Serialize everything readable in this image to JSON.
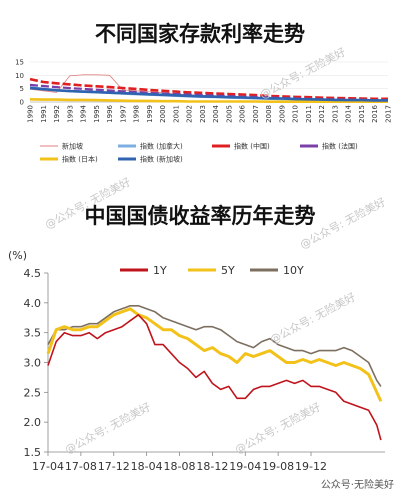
{
  "titles": {
    "top": "不同国家存款利率走势",
    "bottom": "中国国债收益率历年走势"
  },
  "watermarks": [
    "@公众号: 无险美好",
    "@公众号: 无险美好",
    "@公众号: 无险美好",
    "@公众号: 无险美好",
    "@公众号: 无险美好",
    "@公众号: 无险美好"
  ],
  "footer_watermark": "公众号·无险美好",
  "chart_data": [
    {
      "type": "line",
      "title": "不同国家存款利率走势",
      "x": [
        "1990",
        "1991",
        "1992",
        "1993",
        "1994",
        "1995",
        "1996",
        "1997",
        "1998",
        "1999",
        "2000",
        "2001",
        "2002",
        "2003",
        "2004",
        "2005",
        "2006",
        "2007",
        "2008",
        "2009",
        "2010",
        "2011",
        "2012",
        "2013",
        "2014",
        "2015",
        "2016",
        "2017"
      ],
      "ylim": [
        0,
        15
      ],
      "yticks": [
        0,
        5,
        10,
        15
      ],
      "series": [
        {
          "name": "新加坡",
          "color": "#e08080",
          "values": [
            4.8,
            4.2,
            3.6,
            9.8,
            10.2,
            10.2,
            10.0,
            4.5,
            4.2,
            3.8,
            3.5,
            3.0,
            2.7,
            2.5,
            2.3,
            2.1,
            2.0,
            1.8,
            1.6,
            1.4,
            1.2,
            1.0,
            0.9,
            0.8,
            0.7,
            0.6,
            0.5,
            0.4
          ]
        },
        {
          "name": "指数 (加拿大)",
          "color": "#7faee0",
          "values": [
            5.6,
            5.0,
            4.5,
            4.0,
            3.8,
            3.6,
            3.4,
            3.1,
            2.9,
            2.7,
            2.5,
            2.3,
            2.1,
            1.9,
            1.8,
            1.6,
            1.5,
            1.4,
            1.2,
            1.1,
            1.0,
            0.9,
            0.8,
            0.7,
            0.7,
            0.6,
            0.5,
            0.5
          ]
        },
        {
          "name": "指数 (中国)",
          "color": "#e02020",
          "values": [
            8.6,
            7.5,
            7.0,
            6.6,
            6.2,
            5.9,
            5.6,
            5.2,
            4.9,
            4.5,
            4.2,
            3.9,
            3.6,
            3.4,
            3.2,
            3.0,
            2.8,
            2.6,
            2.3,
            2.1,
            1.9,
            1.8,
            1.6,
            1.5,
            1.4,
            1.3,
            1.2,
            1.2
          ]
        },
        {
          "name": "指数 (法国)",
          "color": "#7b3fa8",
          "values": [
            6.4,
            6.0,
            5.6,
            5.2,
            4.9,
            4.6,
            4.3,
            4.0,
            3.7,
            3.4,
            3.2,
            3.0,
            2.8,
            2.6,
            2.4,
            2.2,
            2.0,
            1.9,
            1.7,
            1.5,
            1.4,
            1.2,
            1.1,
            1.0,
            0.9,
            0.8,
            0.7,
            0.7
          ]
        },
        {
          "name": "指数 (日本)",
          "color": "#f3c21a",
          "values": [
            1.0,
            0.9,
            0.9,
            0.8,
            0.8,
            0.7,
            0.6,
            0.5,
            0.4,
            0.4,
            0.3,
            0.3,
            0.2,
            0.2,
            0.2,
            0.2,
            0.2,
            0.2,
            0.1,
            0.1,
            0.1,
            0.1,
            0.1,
            0.1,
            0.1,
            0.1,
            0.1,
            0.1
          ]
        },
        {
          "name": "指数 (新加坡)",
          "color": "#2f63b0",
          "values": [
            5.2,
            4.8,
            4.4,
            4.1,
            3.9,
            3.7,
            3.5,
            3.3,
            3.1,
            2.9,
            2.7,
            2.5,
            2.3,
            2.1,
            2.0,
            1.8,
            1.7,
            1.5,
            1.4,
            1.3,
            1.1,
            1.0,
            0.9,
            0.8,
            0.7,
            0.7,
            0.6,
            0.6
          ]
        }
      ]
    },
    {
      "type": "line",
      "title": "中国国债收益率历年走势",
      "ylabel": "(%)",
      "ylim": [
        1.5,
        4.5
      ],
      "yticks": [
        "4.5",
        "4.0",
        "3.5",
        "3.0",
        "2.5",
        "2.0",
        "1.5"
      ],
      "xticks": [
        "17-04",
        "17-08",
        "17-12",
        "18-04",
        "18-08",
        "18-12",
        "19-04",
        "19-08",
        "19-12"
      ],
      "x_range_months": [
        0,
        41
      ],
      "series": [
        {
          "name": "1Y",
          "color": "#c0141c",
          "x": [
            0,
            1,
            2,
            3,
            4,
            5,
            6,
            7,
            8,
            9,
            10,
            11,
            12,
            13,
            14,
            15,
            16,
            17,
            18,
            19,
            20,
            21,
            22,
            23,
            24,
            25,
            26,
            27,
            28,
            29,
            30,
            31,
            32,
            33,
            34,
            35,
            36,
            37,
            38,
            39,
            40,
            40.5
          ],
          "values": [
            2.95,
            3.35,
            3.5,
            3.45,
            3.45,
            3.5,
            3.4,
            3.5,
            3.55,
            3.6,
            3.7,
            3.8,
            3.65,
            3.3,
            3.3,
            3.15,
            3.0,
            2.9,
            2.75,
            2.85,
            2.65,
            2.55,
            2.6,
            2.4,
            2.4,
            2.55,
            2.6,
            2.6,
            2.65,
            2.7,
            2.65,
            2.7,
            2.6,
            2.6,
            2.55,
            2.5,
            2.35,
            2.3,
            2.25,
            2.2,
            1.95,
            1.7
          ]
        },
        {
          "name": "5Y",
          "color": "#f3c21a",
          "x": [
            0,
            1,
            2,
            3,
            4,
            5,
            6,
            7,
            8,
            9,
            10,
            11,
            12,
            13,
            14,
            15,
            16,
            17,
            18,
            19,
            20,
            21,
            22,
            23,
            24,
            25,
            26,
            27,
            28,
            29,
            30,
            31,
            32,
            33,
            34,
            35,
            36,
            37,
            38,
            39,
            40,
            40.5
          ],
          "values": [
            3.15,
            3.55,
            3.6,
            3.55,
            3.55,
            3.6,
            3.6,
            3.7,
            3.8,
            3.85,
            3.9,
            3.8,
            3.75,
            3.65,
            3.55,
            3.55,
            3.45,
            3.4,
            3.3,
            3.2,
            3.25,
            3.15,
            3.1,
            3.0,
            3.15,
            3.1,
            3.15,
            3.2,
            3.1,
            3.0,
            3.0,
            3.05,
            3.0,
            3.05,
            3.0,
            2.95,
            3.0,
            2.95,
            2.9,
            2.8,
            2.5,
            2.35
          ]
        },
        {
          "name": "10Y",
          "color": "#7d6f60",
          "x": [
            0,
            1,
            2,
            3,
            4,
            5,
            6,
            7,
            8,
            9,
            10,
            11,
            12,
            13,
            14,
            15,
            16,
            17,
            18,
            19,
            20,
            21,
            22,
            23,
            24,
            25,
            26,
            27,
            28,
            29,
            30,
            31,
            32,
            33,
            34,
            35,
            36,
            37,
            38,
            39,
            40,
            40.5
          ],
          "values": [
            3.3,
            3.55,
            3.55,
            3.6,
            3.6,
            3.65,
            3.65,
            3.75,
            3.85,
            3.9,
            3.95,
            3.95,
            3.9,
            3.85,
            3.75,
            3.7,
            3.65,
            3.6,
            3.55,
            3.6,
            3.6,
            3.55,
            3.45,
            3.35,
            3.3,
            3.25,
            3.35,
            3.4,
            3.3,
            3.25,
            3.2,
            3.2,
            3.15,
            3.2,
            3.2,
            3.2,
            3.25,
            3.2,
            3.1,
            3.0,
            2.7,
            2.6
          ]
        }
      ]
    }
  ]
}
